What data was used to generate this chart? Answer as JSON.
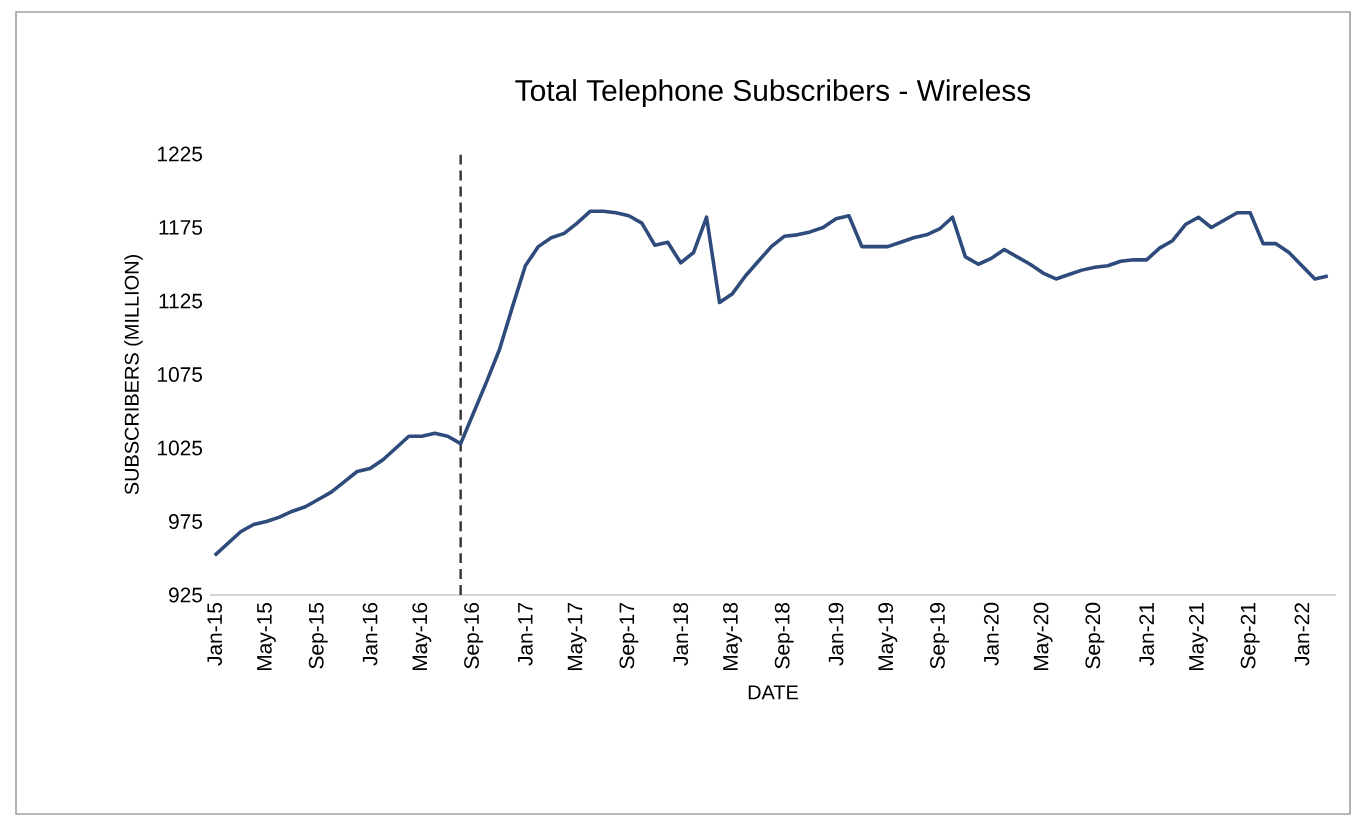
{
  "chart_data": {
    "type": "line",
    "title": "Total Telephone Subscribers - Wireless",
    "xlabel": "DATE",
    "ylabel": "SUBSCRIBERS (MILLION)",
    "x": [
      "2015-01",
      "2015-02",
      "2015-03",
      "2015-04",
      "2015-05",
      "2015-06",
      "2015-07",
      "2015-08",
      "2015-09",
      "2015-10",
      "2015-11",
      "2015-12",
      "2016-01",
      "2016-02",
      "2016-03",
      "2016-04",
      "2016-05",
      "2016-06",
      "2016-07",
      "2016-08",
      "2016-09",
      "2016-10",
      "2016-11",
      "2016-12",
      "2017-01",
      "2017-02",
      "2017-03",
      "2017-04",
      "2017-05",
      "2017-06",
      "2017-07",
      "2017-08",
      "2017-09",
      "2017-10",
      "2017-11",
      "2017-12",
      "2018-01",
      "2018-02",
      "2018-03",
      "2018-04",
      "2018-05",
      "2018-06",
      "2018-07",
      "2018-08",
      "2018-09",
      "2018-10",
      "2018-11",
      "2018-12",
      "2019-01",
      "2019-02",
      "2019-03",
      "2019-04",
      "2019-05",
      "2019-06",
      "2019-07",
      "2019-08",
      "2019-09",
      "2019-10",
      "2019-11",
      "2019-12",
      "2020-01",
      "2020-02",
      "2020-03",
      "2020-04",
      "2020-05",
      "2020-06",
      "2020-07",
      "2020-08",
      "2020-09",
      "2020-10",
      "2020-11",
      "2020-12",
      "2021-01",
      "2021-02",
      "2021-03",
      "2021-04",
      "2021-05",
      "2021-06",
      "2021-07",
      "2021-08",
      "2021-09",
      "2021-10",
      "2021-11",
      "2021-12",
      "2022-01",
      "2022-02",
      "2022-03"
    ],
    "series": [
      {
        "color": "#2f4b7c",
        "values": [
          952,
          960,
          968,
          973,
          975,
          978,
          982,
          985,
          990,
          995,
          1002,
          1009,
          1011,
          1017,
          1025,
          1033,
          1033,
          1035,
          1033,
          1028,
          1049,
          1070,
          1092,
          1121,
          1149,
          1162,
          1168,
          1171,
          1178,
          1186,
          1186,
          1185,
          1183,
          1178,
          1163,
          1165,
          1151,
          1158,
          1182,
          1124,
          1130,
          1142,
          1152,
          1162,
          1169,
          1170,
          1172,
          1175,
          1181,
          1183,
          1162,
          1162,
          1162,
          1165,
          1168,
          1170,
          1174,
          1182,
          1155,
          1150,
          1154,
          1160,
          1155,
          1150,
          1144,
          1140,
          1143,
          1146,
          1148,
          1149,
          1152,
          1153,
          1153,
          1161,
          1166,
          1177,
          1182,
          1175,
          1180,
          1185,
          1185,
          1164,
          1164,
          1158,
          1149,
          1140,
          1142
        ]
      }
    ],
    "xlim": [
      "2014-12-20",
      "2022-03-20"
    ],
    "xticks": [
      {
        "value": "2015-01",
        "label": "Jan-15"
      },
      {
        "value": "2015-05",
        "label": "May-15"
      },
      {
        "value": "2015-09",
        "label": "Sep-15"
      },
      {
        "value": "2016-01",
        "label": "Jan-16"
      },
      {
        "value": "2016-05",
        "label": "May-16"
      },
      {
        "value": "2016-09",
        "label": "Sep-16"
      },
      {
        "value": "2017-01",
        "label": "Jan-17"
      },
      {
        "value": "2017-05",
        "label": "May-17"
      },
      {
        "value": "2017-09",
        "label": "Sep-17"
      },
      {
        "value": "2018-01",
        "label": "Jan-18"
      },
      {
        "value": "2018-05",
        "label": "May-18"
      },
      {
        "value": "2018-09",
        "label": "Sep-18"
      },
      {
        "value": "2019-01",
        "label": "Jan-19"
      },
      {
        "value": "2019-05",
        "label": "May-19"
      },
      {
        "value": "2019-09",
        "label": "Sep-19"
      },
      {
        "value": "2020-01",
        "label": "Jan-20"
      },
      {
        "value": "2020-05",
        "label": "May-20"
      },
      {
        "value": "2020-09",
        "label": "Sep-20"
      },
      {
        "value": "2021-01",
        "label": "Jan-21"
      },
      {
        "value": "2021-05",
        "label": "May-21"
      },
      {
        "value": "2021-09",
        "label": "Sep-21"
      },
      {
        "value": "2022-01",
        "label": "Jan-22"
      }
    ],
    "ylim": [
      925,
      1225
    ],
    "yticks": [
      925,
      975,
      1025,
      1075,
      1125,
      1175,
      1225
    ],
    "ref_lines": [
      {
        "axis": "x",
        "value": "2016-08",
        "color": "#333333",
        "line_style": "dashed"
      }
    ],
    "grid": false,
    "legend": false,
    "marker": "none",
    "line_style": "solid"
  }
}
